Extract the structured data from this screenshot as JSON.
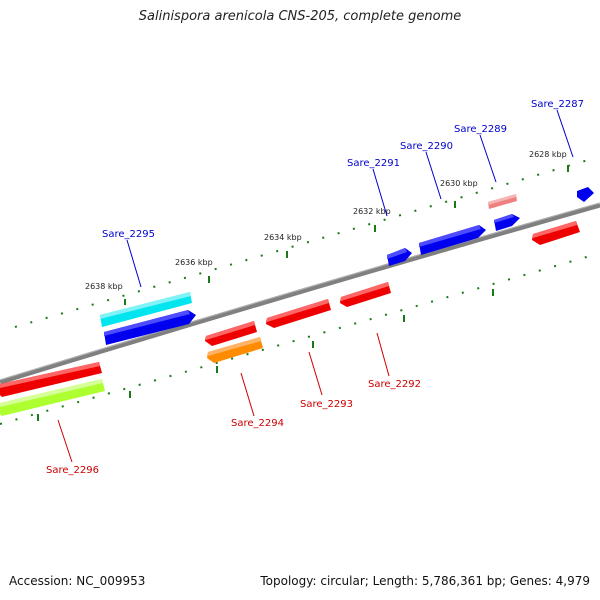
{
  "title": "Salinispora arenicola CNS-205, complete genome",
  "footer": {
    "accession": "Accession: NC_009953",
    "summary": "Topology: circular; Length: 5,786,361 bp; Genes: 4,979"
  },
  "colors": {
    "forward_gene": "#0000ee",
    "reverse_gene": "#ee0000",
    "backbone": "#808080",
    "tick": "#1a7a1a",
    "forward_label": "#0000cc",
    "reverse_label": "#cc0000"
  },
  "scale_labels": [
    "2628 kbp",
    "2630 kbp",
    "2632 kbp",
    "2634 kbp",
    "2636 kbp",
    "2638 kbp"
  ],
  "genes": [
    {
      "id": "Sare_2287",
      "label": "Sare_2287",
      "strand": "forward",
      "color": "#0000ee"
    },
    {
      "id": "Sare_2289",
      "label": "Sare_2289",
      "strand": "forward",
      "color": "#f08080"
    },
    {
      "id": "Sare_2290",
      "label": "Sare_2290",
      "strand": "forward",
      "color": "#0000ee"
    },
    {
      "id": "Sare_2291",
      "label": "Sare_2291",
      "strand": "forward",
      "color": "#0000ee"
    },
    {
      "id": "Sare_2295",
      "label": "Sare_2295",
      "strand": "forward",
      "color": "#00e5ee"
    },
    {
      "id": "Sare_2295b",
      "label": "",
      "strand": "forward",
      "color": "#0000ee"
    },
    {
      "id": "Sare_2288",
      "label": "",
      "strand": "reverse",
      "color": "#ee0000"
    },
    {
      "id": "Sare_2289b",
      "label": "",
      "strand": "forward",
      "color": "#0000ee"
    },
    {
      "id": "Sare_2292",
      "label": "Sare_2292",
      "strand": "reverse",
      "color": "#ee0000"
    },
    {
      "id": "Sare_2293",
      "label": "Sare_2293",
      "strand": "reverse",
      "color": "#ee0000"
    },
    {
      "id": "Sare_2294a",
      "label": "",
      "strand": "reverse",
      "color": "#ee0000"
    },
    {
      "id": "Sare_2294",
      "label": "Sare_2294",
      "strand": "reverse",
      "color": "#ff8c00"
    },
    {
      "id": "Sare_2296a",
      "label": "",
      "strand": "reverse",
      "color": "#ee0000"
    },
    {
      "id": "Sare_2296",
      "label": "Sare_2296",
      "strand": "reverse",
      "color": "#adff2f"
    }
  ]
}
